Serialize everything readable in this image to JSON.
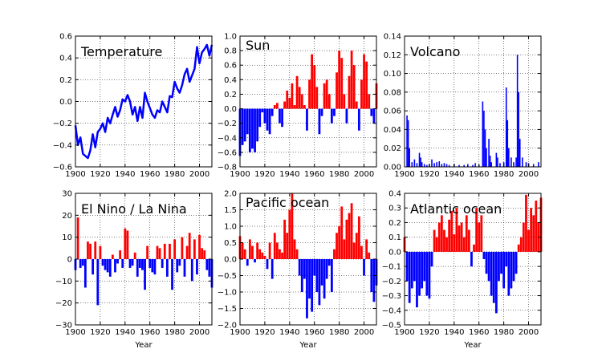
{
  "colors": {
    "positive": "#ff0000",
    "negative": "#0000ff",
    "line": "#0000ff"
  },
  "chart_data": [
    {
      "type": "line",
      "title": "Temperature",
      "xlabel": "",
      "xlim": [
        1900,
        2010
      ],
      "ylim": [
        -0.6,
        0.6
      ],
      "xticks": [
        1900,
        1920,
        1940,
        1960,
        1980,
        2000
      ],
      "yticks": [
        -0.6,
        -0.4,
        -0.2,
        0.0,
        0.2,
        0.4,
        0.6
      ],
      "ytick_labels": [
        "−0.6",
        "−0.4",
        "−0.2",
        "0.0",
        "0.2",
        "0.4",
        "0.6"
      ],
      "grid": true,
      "x": [
        1900,
        1902,
        1904,
        1906,
        1908,
        1910,
        1912,
        1914,
        1916,
        1918,
        1920,
        1922,
        1924,
        1926,
        1928,
        1930,
        1932,
        1934,
        1936,
        1938,
        1940,
        1942,
        1944,
        1946,
        1948,
        1950,
        1952,
        1954,
        1956,
        1958,
        1960,
        1962,
        1964,
        1966,
        1968,
        1970,
        1972,
        1974,
        1976,
        1978,
        1980,
        1982,
        1984,
        1986,
        1988,
        1990,
        1992,
        1994,
        1996,
        1998,
        2000,
        2002,
        2004,
        2006,
        2008,
        2010
      ],
      "y": [
        -0.22,
        -0.4,
        -0.33,
        -0.48,
        -0.5,
        -0.52,
        -0.45,
        -0.3,
        -0.42,
        -0.28,
        -0.25,
        -0.2,
        -0.28,
        -0.15,
        -0.2,
        -0.12,
        -0.05,
        -0.14,
        -0.08,
        0.02,
        0.0,
        0.06,
        0.0,
        -0.12,
        -0.05,
        -0.18,
        -0.05,
        -0.15,
        0.08,
        0.0,
        -0.06,
        -0.12,
        -0.15,
        -0.08,
        -0.1,
        0.0,
        -0.05,
        -0.1,
        0.05,
        0.04,
        0.18,
        0.12,
        0.08,
        0.15,
        0.25,
        0.3,
        0.18,
        0.24,
        0.3,
        0.5,
        0.35,
        0.45,
        0.48,
        0.52,
        0.42,
        0.52
      ]
    },
    {
      "type": "bar",
      "title": "Sun",
      "xlabel": "",
      "xlim": [
        1900,
        2010
      ],
      "ylim": [
        -0.8,
        1.0
      ],
      "xticks": [
        1900,
        1920,
        1940,
        1960,
        1980,
        2000
      ],
      "yticks": [
        -0.8,
        -0.6,
        -0.4,
        -0.2,
        0.0,
        0.2,
        0.4,
        0.6,
        0.8,
        1.0
      ],
      "ytick_labels": [
        "−0.8",
        "−0.6",
        "−0.4",
        "−0.2",
        "0.0",
        "0.2",
        "0.4",
        "0.6",
        "0.8",
        "1.0"
      ],
      "grid": true,
      "x": [
        1900,
        1902,
        1904,
        1906,
        1908,
        1910,
        1912,
        1914,
        1916,
        1918,
        1920,
        1922,
        1924,
        1926,
        1928,
        1930,
        1932,
        1934,
        1936,
        1938,
        1940,
        1942,
        1944,
        1946,
        1948,
        1950,
        1952,
        1954,
        1956,
        1958,
        1960,
        1962,
        1964,
        1966,
        1968,
        1970,
        1972,
        1974,
        1976,
        1978,
        1980,
        1982,
        1984,
        1986,
        1988,
        1990,
        1992,
        1994,
        1996,
        1998,
        2000,
        2002,
        2004,
        2006,
        2008,
        2010
      ],
      "values": [
        -0.65,
        -0.5,
        -0.45,
        -0.35,
        -0.6,
        -0.55,
        -0.6,
        -0.45,
        -0.25,
        -0.05,
        -0.2,
        -0.3,
        -0.35,
        -0.1,
        0.05,
        0.08,
        -0.2,
        -0.25,
        0.1,
        0.25,
        0.15,
        0.35,
        0.05,
        0.45,
        0.3,
        0.2,
        0.05,
        -0.3,
        0.4,
        0.75,
        0.6,
        0.3,
        -0.35,
        -0.1,
        0.35,
        0.4,
        0.2,
        -0.2,
        -0.1,
        0.5,
        0.8,
        0.7,
        0.2,
        -0.2,
        0.45,
        0.8,
        0.6,
        0.1,
        -0.3,
        0.4,
        0.75,
        0.65,
        0.2,
        -0.1,
        -0.2,
        0.35
      ]
    },
    {
      "type": "bar",
      "title": "Volcano",
      "xlabel": "",
      "xlim": [
        1900,
        2010
      ],
      "ylim": [
        0.0,
        0.14
      ],
      "xticks": [
        1900,
        1920,
        1940,
        1960,
        1980,
        2000
      ],
      "yticks": [
        0.0,
        0.02,
        0.04,
        0.06,
        0.08,
        0.1,
        0.12,
        0.14
      ],
      "ytick_labels": [
        "0.00",
        "0.02",
        "0.04",
        "0.06",
        "0.08",
        "0.10",
        "0.12",
        "0.14"
      ],
      "grid": true,
      "x": [
        1902,
        1903,
        1904,
        1906,
        1908,
        1910,
        1912,
        1913,
        1914,
        1916,
        1918,
        1920,
        1922,
        1924,
        1926,
        1928,
        1930,
        1932,
        1934,
        1936,
        1940,
        1944,
        1948,
        1951,
        1955,
        1957,
        1960,
        1963,
        1964,
        1965,
        1966,
        1968,
        1969,
        1970,
        1974,
        1975,
        1977,
        1980,
        1982,
        1983,
        1984,
        1986,
        1988,
        1990,
        1991,
        1992,
        1993,
        1995,
        1998,
        2000,
        2004,
        2008
      ],
      "values": [
        0.055,
        0.05,
        0.02,
        0.005,
        0.008,
        0.004,
        0.015,
        0.01,
        0.005,
        0.003,
        0.002,
        0.003,
        0.008,
        0.004,
        0.005,
        0.006,
        0.003,
        0.004,
        0.003,
        0.002,
        0.003,
        0.002,
        0.002,
        0.003,
        0.002,
        0.004,
        0.002,
        0.07,
        0.06,
        0.04,
        0.02,
        0.03,
        0.012,
        0.005,
        0.015,
        0.01,
        0.004,
        0.005,
        0.085,
        0.05,
        0.02,
        0.01,
        0.005,
        0.01,
        0.12,
        0.08,
        0.03,
        0.01,
        0.005,
        0.004,
        0.003,
        0.005
      ]
    },
    {
      "type": "bar",
      "title": "El Nino / La Nina",
      "xlabel": "Year",
      "xlim": [
        1900,
        2010
      ],
      "ylim": [
        -30,
        30
      ],
      "xticks": [
        1900,
        1920,
        1940,
        1960,
        1980,
        2000
      ],
      "yticks": [
        -30,
        -20,
        -10,
        0,
        10,
        20,
        30
      ],
      "ytick_labels": [
        "−30",
        "−20",
        "−10",
        "0",
        "10",
        "20",
        "30"
      ],
      "grid": true,
      "x": [
        1900,
        1902,
        1904,
        1906,
        1908,
        1910,
        1912,
        1914,
        1916,
        1918,
        1920,
        1922,
        1924,
        1926,
        1928,
        1930,
        1932,
        1934,
        1936,
        1938,
        1940,
        1942,
        1944,
        1946,
        1948,
        1950,
        1952,
        1954,
        1956,
        1958,
        1960,
        1962,
        1964,
        1966,
        1968,
        1970,
        1972,
        1974,
        1976,
        1978,
        1980,
        1982,
        1984,
        1986,
        1988,
        1990,
        1992,
        1994,
        1996,
        1998,
        2000,
        2002,
        2004,
        2006,
        2008,
        2010
      ],
      "values": [
        -5,
        19,
        -4,
        -3,
        -13,
        8,
        7,
        -7,
        8,
        -21,
        6,
        -3,
        -5,
        -6,
        -8,
        2,
        -6,
        -2,
        4,
        -4,
        14,
        13,
        -4,
        -3,
        3,
        -8,
        -4,
        -5,
        -14,
        6,
        -4,
        -6,
        -7,
        6,
        5,
        -4,
        7,
        -8,
        7,
        -14,
        9,
        -6,
        -3,
        10,
        -8,
        6,
        12,
        -10,
        9,
        -7,
        11,
        5,
        4,
        -5,
        -8,
        -13
      ]
    },
    {
      "type": "bar",
      "title": "Pacific ocean",
      "xlabel": "Year",
      "xlim": [
        1900,
        2010
      ],
      "ylim": [
        -2.0,
        2.0
      ],
      "xticks": [
        1900,
        1920,
        1940,
        1960,
        1980,
        2000
      ],
      "yticks": [
        -2.0,
        -1.5,
        -1.0,
        -0.5,
        0.0,
        0.5,
        1.0,
        1.5,
        2.0
      ],
      "ytick_labels": [
        "−2.0",
        "−1.5",
        "−1.0",
        "−0.5",
        "0.0",
        "0.5",
        "1.0",
        "1.5",
        "2.0"
      ],
      "grid": true,
      "x": [
        1900,
        1902,
        1904,
        1906,
        1908,
        1910,
        1912,
        1914,
        1916,
        1918,
        1920,
        1922,
        1924,
        1926,
        1928,
        1930,
        1932,
        1934,
        1936,
        1938,
        1940,
        1942,
        1944,
        1946,
        1948,
        1950,
        1952,
        1954,
        1956,
        1958,
        1960,
        1962,
        1964,
        1966,
        1968,
        1970,
        1972,
        1974,
        1976,
        1978,
        1980,
        1982,
        1984,
        1986,
        1988,
        1990,
        1992,
        1994,
        1996,
        1998,
        2000,
        2002,
        2004,
        2006,
        2008,
        2010
      ],
      "values": [
        0.7,
        0.5,
        0.3,
        -0.2,
        0.6,
        0.4,
        -0.1,
        0.5,
        0.3,
        0.2,
        0.1,
        -0.3,
        0.5,
        -0.6,
        0.8,
        0.5,
        0.3,
        0.2,
        1.2,
        0.8,
        1.5,
        2.0,
        0.6,
        0.3,
        -0.5,
        -1.0,
        -0.6,
        -1.8,
        -1.2,
        -1.6,
        -0.5,
        -1.0,
        -1.4,
        -0.8,
        -1.2,
        -0.6,
        -0.2,
        -1.0,
        0.3,
        0.8,
        1.0,
        1.6,
        0.6,
        1.2,
        1.4,
        1.7,
        0.5,
        0.8,
        1.3,
        0.4,
        -0.5,
        0.6,
        0.2,
        -1.0,
        -1.3,
        -0.8
      ]
    },
    {
      "type": "bar",
      "title": "Atlantic ocean",
      "xlabel": "Year",
      "xlim": [
        1900,
        2010
      ],
      "ylim": [
        -0.5,
        0.4
      ],
      "xticks": [
        1900,
        1920,
        1940,
        1960,
        1980,
        2000
      ],
      "yticks": [
        -0.5,
        -0.4,
        -0.3,
        -0.2,
        -0.1,
        0.0,
        0.1,
        0.2,
        0.3,
        0.4
      ],
      "ytick_labels": [
        "−0.5",
        "−0.4",
        "−0.3",
        "−0.2",
        "−0.1",
        "0.0",
        "0.1",
        "0.2",
        "0.3",
        "0.4"
      ],
      "grid": true,
      "x": [
        1900,
        1902,
        1904,
        1906,
        1908,
        1910,
        1912,
        1914,
        1916,
        1918,
        1920,
        1922,
        1924,
        1926,
        1928,
        1930,
        1932,
        1934,
        1936,
        1938,
        1940,
        1942,
        1944,
        1946,
        1948,
        1950,
        1952,
        1954,
        1956,
        1958,
        1960,
        1962,
        1964,
        1966,
        1968,
        1970,
        1972,
        1974,
        1976,
        1978,
        1980,
        1982,
        1984,
        1986,
        1988,
        1990,
        1992,
        1994,
        1996,
        1998,
        2000,
        2002,
        2004,
        2006,
        2008,
        2010
      ],
      "values": [
        0.1,
        -0.2,
        -0.35,
        -0.25,
        -0.2,
        -0.38,
        -0.3,
        -0.25,
        -0.2,
        -0.3,
        -0.32,
        -0.1,
        0.15,
        0.1,
        0.2,
        0.25,
        0.15,
        0.1,
        0.22,
        0.28,
        0.12,
        0.3,
        0.18,
        0.2,
        0.1,
        0.25,
        0.15,
        -0.1,
        0.05,
        0.3,
        0.2,
        0.25,
        -0.05,
        -0.15,
        -0.2,
        -0.3,
        -0.35,
        -0.42,
        -0.2,
        -0.15,
        -0.25,
        -0.1,
        -0.3,
        -0.25,
        -0.2,
        -0.15,
        0.05,
        0.1,
        0.2,
        0.39,
        0.15,
        0.3,
        0.25,
        0.35,
        0.2,
        0.37
      ]
    }
  ]
}
